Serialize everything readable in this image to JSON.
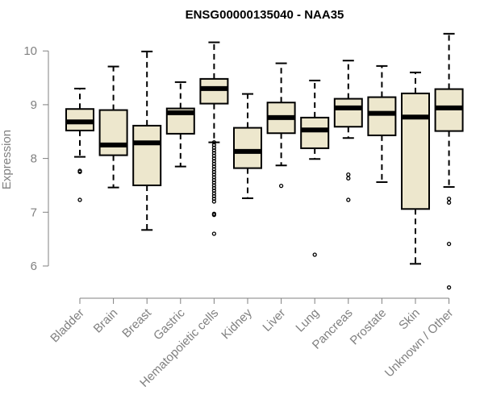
{
  "chart_data": {
    "type": "boxplot",
    "title": "ENSG00000135040 - NAA35",
    "xlabel": "",
    "ylabel": "Expression",
    "ylim": [
      5.45,
      10.45
    ],
    "yticks": [
      6,
      7,
      8,
      9,
      10
    ],
    "box_fill": "#ede7cd",
    "axis_color": "#808080",
    "categories": [
      "Bladder",
      "Brain",
      "Breast",
      "Gastric",
      "Hematopoietic cells",
      "Kidney",
      "Liver",
      "Lung",
      "Pancreas",
      "Prostate",
      "Skin",
      "Unknown / Other"
    ],
    "series": [
      {
        "name": "Bladder",
        "whisker_low": 8.03,
        "q1": 8.52,
        "median": 8.68,
        "q3": 8.92,
        "whisker_high": 9.3,
        "outliers": [
          7.77,
          7.75,
          7.23
        ]
      },
      {
        "name": "Brain",
        "whisker_low": 7.46,
        "q1": 8.06,
        "median": 8.25,
        "q3": 8.9,
        "whisker_high": 9.71,
        "outliers": []
      },
      {
        "name": "Breast",
        "whisker_low": 6.67,
        "q1": 7.5,
        "median": 8.29,
        "q3": 8.61,
        "whisker_high": 9.99,
        "outliers": []
      },
      {
        "name": "Gastric",
        "whisker_low": 7.85,
        "q1": 8.46,
        "median": 8.85,
        "q3": 8.93,
        "whisker_high": 9.42,
        "outliers": []
      },
      {
        "name": "Hematopoietic cells",
        "whisker_low": 8.3,
        "q1": 9.02,
        "median": 9.3,
        "q3": 9.48,
        "whisker_high": 10.16,
        "outliers": [
          8.3,
          8.25,
          8.2,
          8.15,
          8.1,
          8.05,
          8.0,
          7.95,
          7.9,
          7.85,
          7.8,
          7.75,
          7.7,
          7.65,
          7.6,
          7.55,
          7.5,
          7.45,
          7.4,
          7.35,
          7.3,
          7.25,
          7.2,
          6.97,
          6.95,
          6.6
        ]
      },
      {
        "name": "Kidney",
        "whisker_low": 7.26,
        "q1": 7.82,
        "median": 8.13,
        "q3": 8.57,
        "whisker_high": 9.2,
        "outliers": []
      },
      {
        "name": "Liver",
        "whisker_low": 7.87,
        "q1": 8.47,
        "median": 8.76,
        "q3": 9.04,
        "whisker_high": 9.77,
        "outliers": [
          7.49
        ]
      },
      {
        "name": "Lung",
        "whisker_low": 7.99,
        "q1": 8.19,
        "median": 8.53,
        "q3": 8.76,
        "whisker_high": 9.45,
        "outliers": [
          6.21
        ]
      },
      {
        "name": "Pancreas",
        "whisker_low": 8.38,
        "q1": 8.59,
        "median": 8.94,
        "q3": 9.11,
        "whisker_high": 9.82,
        "outliers": [
          7.7,
          7.63,
          7.23
        ]
      },
      {
        "name": "Prostate",
        "whisker_low": 7.56,
        "q1": 8.43,
        "median": 8.84,
        "q3": 9.14,
        "whisker_high": 9.72,
        "outliers": []
      },
      {
        "name": "Skin",
        "whisker_low": 6.04,
        "q1": 7.06,
        "median": 8.77,
        "q3": 9.21,
        "whisker_high": 9.6,
        "outliers": []
      },
      {
        "name": "Unknown / Other",
        "whisker_low": 7.47,
        "q1": 8.51,
        "median": 8.94,
        "q3": 9.29,
        "whisker_high": 10.32,
        "outliers": [
          7.25,
          7.18,
          6.41,
          5.6
        ]
      }
    ]
  }
}
